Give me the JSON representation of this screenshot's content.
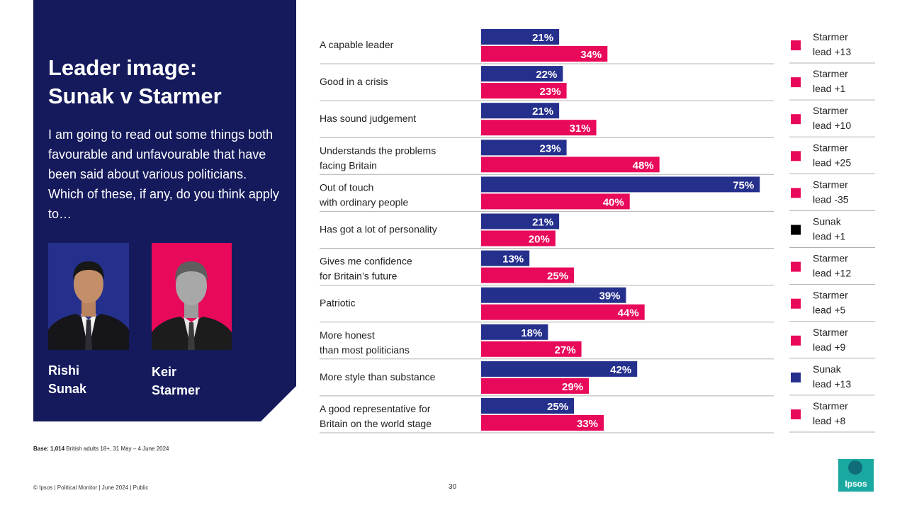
{
  "title": {
    "line1": "Leader image:",
    "line2": "Sunak v Starmer"
  },
  "question": "I am going to read out some things both favourable and unfavourable that have been said about various politicians. Which of these, if any, do you think apply to…",
  "people": {
    "sunak": {
      "first": "Rishi",
      "last": "Sunak"
    },
    "starmer": {
      "first": "Keir",
      "last": "Starmer"
    }
  },
  "base": {
    "label": "Base:",
    "n": "1,014",
    "desc": "British adults 18+, 31 May – 4 June 2024"
  },
  "footer": "© Ipsos | Political Monitor | June 2024 | Public",
  "page_number": "30",
  "logo_text": "Ipsos",
  "colors": {
    "sunak": "#25308d",
    "starmer": "#e8095a",
    "panel": "#141a5c",
    "marker_sunak_lead_small": "#000000",
    "gridline": "#b0b0b0"
  },
  "chart_data": {
    "type": "bar",
    "orientation": "horizontal",
    "value_suffix": "%",
    "xlim": [
      0,
      80
    ],
    "series": [
      {
        "name": "Rishi Sunak",
        "values": [
          21,
          22,
          21,
          23,
          75,
          21,
          13,
          39,
          18,
          42,
          25
        ]
      },
      {
        "name": "Keir Starmer",
        "values": [
          34,
          23,
          31,
          48,
          40,
          20,
          25,
          44,
          27,
          29,
          33
        ]
      }
    ],
    "categories": [
      {
        "line1": "A capable leader",
        "line2": ""
      },
      {
        "line1": "Good in a crisis",
        "line2": ""
      },
      {
        "line1": "Has sound judgement",
        "line2": ""
      },
      {
        "line1": "Understands the problems",
        "line2": "facing Britain"
      },
      {
        "line1": "Out of touch",
        "line2": "with ordinary people"
      },
      {
        "line1": "Has got a lot of personality",
        "line2": ""
      },
      {
        "line1": "Gives me confidence",
        "line2": "for Britain’s future"
      },
      {
        "line1": "Patriotic",
        "line2": ""
      },
      {
        "line1": "More honest",
        "line2": "than most politicians"
      },
      {
        "line1": "More style than substance",
        "line2": ""
      },
      {
        "line1": "A good representative for",
        "line2": "Britain on the world stage"
      }
    ],
    "leads": [
      {
        "line1": "Starmer",
        "line2": "lead +13",
        "color": "#e8095a"
      },
      {
        "line1": "Starmer",
        "line2": "lead +1",
        "color": "#e8095a"
      },
      {
        "line1": "Starmer",
        "line2": "lead +10",
        "color": "#e8095a"
      },
      {
        "line1": "Starmer",
        "line2": "lead +25",
        "color": "#e8095a"
      },
      {
        "line1": "Starmer",
        "line2": "lead -35",
        "color": "#e8095a"
      },
      {
        "line1": "Sunak",
        "line2": "lead +1",
        "color": "#000000"
      },
      {
        "line1": "Starmer",
        "line2": "lead +12",
        "color": "#e8095a"
      },
      {
        "line1": "Starmer",
        "line2": "lead +5",
        "color": "#e8095a"
      },
      {
        "line1": "Starmer",
        "line2": "lead +9",
        "color": "#e8095a"
      },
      {
        "line1": "Sunak",
        "line2": "lead +13",
        "color": "#25308d"
      },
      {
        "line1": "Starmer",
        "line2": "lead +8",
        "color": "#e8095a"
      }
    ]
  }
}
